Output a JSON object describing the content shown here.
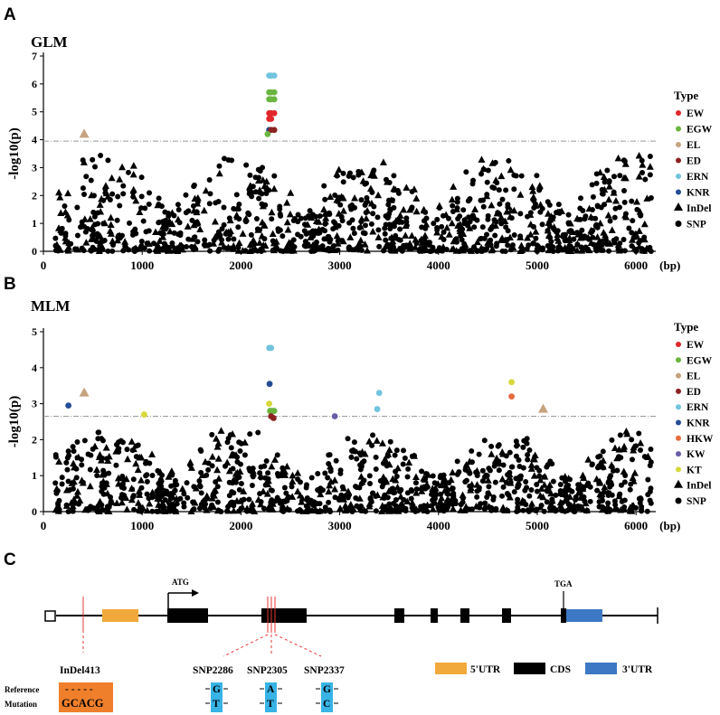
{
  "panels": {
    "a": "A",
    "b": "B",
    "c": "C"
  },
  "chart_data": [
    {
      "type": "scatter",
      "title": "GLM",
      "ylabel": "-log10(p)",
      "xlabel": "(bp)",
      "xlim": [
        0,
        6200
      ],
      "ylim": [
        0,
        7
      ],
      "xticks": [
        "0",
        "1000",
        "2000",
        "3000",
        "4000",
        "5000",
        "6000"
      ],
      "yticks": [
        "0",
        "1",
        "2",
        "3",
        "4",
        "5",
        "6",
        "7"
      ],
      "threshold": 3.95,
      "legend": {
        "title": "Type",
        "items": [
          {
            "label": "EW",
            "color": "#e0262b"
          },
          {
            "label": "EGW",
            "color": "#6ab53f"
          },
          {
            "label": "EL",
            "color": "#c6a37e"
          },
          {
            "label": "ED",
            "color": "#8c2221"
          },
          {
            "label": "ERN",
            "color": "#72c4de"
          },
          {
            "label": "KNR",
            "color": "#254c95"
          }
        ],
        "shapes": [
          {
            "label": "InDel",
            "shape": "triangle"
          },
          {
            "label": "SNP",
            "shape": "circle"
          }
        ]
      },
      "highlighted": [
        {
          "x": 413,
          "y": 4.2,
          "trait": "EL",
          "shape": "triangle"
        },
        {
          "x": 2286,
          "y": 6.3,
          "trait": "ERN",
          "shape": "circle"
        },
        {
          "x": 2305,
          "y": 6.3,
          "trait": "ERN",
          "shape": "circle"
        },
        {
          "x": 2337,
          "y": 6.3,
          "trait": "ERN",
          "shape": "circle"
        },
        {
          "x": 2286,
          "y": 5.7,
          "trait": "EGW",
          "shape": "circle"
        },
        {
          "x": 2305,
          "y": 5.7,
          "trait": "EGW",
          "shape": "circle"
        },
        {
          "x": 2337,
          "y": 5.7,
          "trait": "EGW",
          "shape": "circle"
        },
        {
          "x": 2286,
          "y": 5.45,
          "trait": "EGW",
          "shape": "circle"
        },
        {
          "x": 2305,
          "y": 5.45,
          "trait": "EGW",
          "shape": "circle"
        },
        {
          "x": 2337,
          "y": 5.45,
          "trait": "EGW",
          "shape": "circle"
        },
        {
          "x": 2286,
          "y": 4.95,
          "trait": "EW",
          "shape": "circle"
        },
        {
          "x": 2305,
          "y": 4.95,
          "trait": "EW",
          "shape": "circle"
        },
        {
          "x": 2337,
          "y": 4.95,
          "trait": "EW",
          "shape": "circle"
        },
        {
          "x": 2286,
          "y": 4.75,
          "trait": "EW",
          "shape": "circle"
        },
        {
          "x": 2305,
          "y": 4.75,
          "trait": "EW",
          "shape": "circle"
        },
        {
          "x": 2286,
          "y": 4.35,
          "trait": "KNR",
          "shape": "circle"
        },
        {
          "x": 2305,
          "y": 4.35,
          "trait": "ED",
          "shape": "circle"
        },
        {
          "x": 2337,
          "y": 4.35,
          "trait": "ED",
          "shape": "circle"
        },
        {
          "x": 2270,
          "y": 4.2,
          "trait": "EGW",
          "shape": "circle"
        }
      ]
    },
    {
      "type": "scatter",
      "title": "MLM",
      "ylabel": "-log10(p)",
      "xlabel": "(bp)",
      "xlim": [
        0,
        6200
      ],
      "ylim": [
        0,
        5
      ],
      "xticks": [
        "0",
        "1000",
        "2000",
        "3000",
        "4000",
        "5000",
        "6000"
      ],
      "yticks": [
        "0",
        "1",
        "2",
        "3",
        "4",
        "5"
      ],
      "threshold": 2.65,
      "legend": {
        "title": "Type",
        "items": [
          {
            "label": "EW",
            "color": "#e0262b"
          },
          {
            "label": "EGW",
            "color": "#6ab53f"
          },
          {
            "label": "EL",
            "color": "#c6a37e"
          },
          {
            "label": "ED",
            "color": "#8c2221"
          },
          {
            "label": "ERN",
            "color": "#72c4de"
          },
          {
            "label": "KNR",
            "color": "#254c95"
          },
          {
            "label": "HKW",
            "color": "#e86a3c"
          },
          {
            "label": "KW",
            "color": "#6a5ca8"
          },
          {
            "label": "KT",
            "color": "#d7d83a"
          }
        ],
        "shapes": [
          {
            "label": "InDel",
            "shape": "triangle"
          },
          {
            "label": "SNP",
            "shape": "circle"
          }
        ]
      },
      "highlighted": [
        {
          "x": 253,
          "y": 2.95,
          "trait": "KNR",
          "shape": "circle"
        },
        {
          "x": 413,
          "y": 3.3,
          "trait": "EL",
          "shape": "triangle"
        },
        {
          "x": 1020,
          "y": 2.7,
          "trait": "KT",
          "shape": "circle"
        },
        {
          "x": 2286,
          "y": 4.55,
          "trait": "ERN",
          "shape": "circle"
        },
        {
          "x": 2305,
          "y": 4.55,
          "trait": "ERN",
          "shape": "circle"
        },
        {
          "x": 2290,
          "y": 3.55,
          "trait": "KNR",
          "shape": "circle"
        },
        {
          "x": 2286,
          "y": 3.0,
          "trait": "KT",
          "shape": "circle"
        },
        {
          "x": 2295,
          "y": 2.8,
          "trait": "EGW",
          "shape": "circle"
        },
        {
          "x": 2315,
          "y": 2.8,
          "trait": "EGW",
          "shape": "circle"
        },
        {
          "x": 2337,
          "y": 2.8,
          "trait": "EGW",
          "shape": "circle"
        },
        {
          "x": 2305,
          "y": 2.65,
          "trait": "ED",
          "shape": "circle"
        },
        {
          "x": 2330,
          "y": 2.6,
          "trait": "ED",
          "shape": "circle"
        },
        {
          "x": 2950,
          "y": 2.65,
          "trait": "KW",
          "shape": "circle"
        },
        {
          "x": 3380,
          "y": 2.85,
          "trait": "ERN",
          "shape": "circle"
        },
        {
          "x": 3400,
          "y": 3.3,
          "trait": "ERN",
          "shape": "circle"
        },
        {
          "x": 4740,
          "y": 3.6,
          "trait": "KT",
          "shape": "circle"
        },
        {
          "x": 4740,
          "y": 3.2,
          "trait": "HKW",
          "shape": "circle"
        },
        {
          "x": 5060,
          "y": 2.85,
          "trait": "EL",
          "shape": "triangle"
        }
      ]
    }
  ],
  "gene": {
    "atg": "ATG",
    "tga": "TGA",
    "variants": [
      "InDel413",
      "SNP2286",
      "SNP2305",
      "SNP2337"
    ],
    "reference_label": "Reference",
    "mutation_label": "Mutation",
    "ref_seq": [
      "- - - - -",
      "G",
      "A",
      "G"
    ],
    "mut_seq": [
      "GCACG",
      "T",
      "T",
      "C"
    ],
    "legend": [
      {
        "label": "5'UTR",
        "color": "#f2a93b"
      },
      {
        "label": "CDS",
        "color": "#000000"
      },
      {
        "label": "3'UTR",
        "color": "#3c78c3"
      }
    ],
    "colors": {
      "indel_box": "#f07f2b",
      "snp_box": "#37b3e6",
      "variant_line": "#e53935"
    }
  }
}
